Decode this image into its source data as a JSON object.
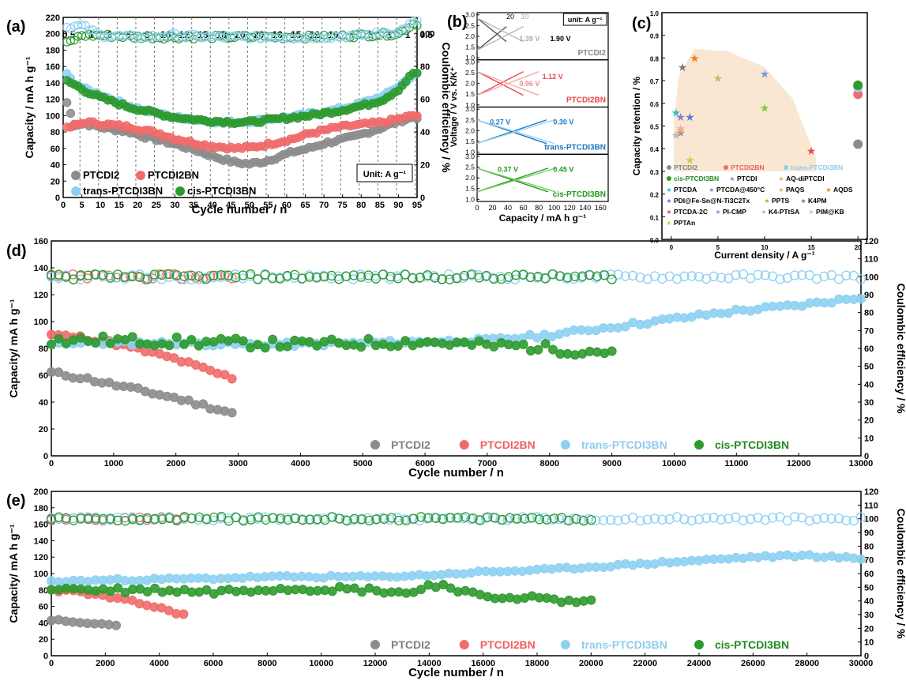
{
  "colors": {
    "PTCDI2": "#8c8c8c",
    "PTCDI2BN": "#f06b6b",
    "trans-PTCDI3BN": "#8dd0f2",
    "cis-PTCDI3BN": "#2e9a2e",
    "legend_text_PTCDI2": "#808080",
    "legend_text_PTCDI2BN": "#f06060",
    "legend_text_trans": "#8fcbed",
    "legend_text_cis": "#228b22"
  },
  "chart_data": [
    {
      "panel": "(a)",
      "type": "scatter",
      "xlabel": "Cycle number / n",
      "ylabel": "Capacity / mA h g⁻¹",
      "y2label": "Coulombic efficiency / %",
      "xlim": [
        0,
        95
      ],
      "ylim": [
        0,
        220
      ],
      "y2lim": [
        0,
        110
      ],
      "xticks": [
        0,
        5,
        10,
        15,
        20,
        25,
        30,
        35,
        40,
        45,
        50,
        55,
        60,
        65,
        70,
        75,
        80,
        85,
        90,
        95
      ],
      "yticks": [
        0,
        20,
        40,
        60,
        80,
        100,
        120,
        140,
        160,
        180,
        200,
        220
      ],
      "y2ticks": [
        0,
        20,
        40,
        60,
        80,
        100
      ],
      "rate_labels": [
        "0.5",
        "1",
        "3",
        "5",
        "8",
        "10",
        "12",
        "15",
        "18",
        "20",
        "20",
        "18",
        "15",
        "12",
        "10",
        "8",
        "5",
        "3",
        "1",
        "0.5"
      ],
      "unit_box": "Unit: A g⁻¹",
      "legend": [
        "PTCDI2",
        "PTCDI2BN",
        "trans-PTCDI3BN",
        "cis-PTCDI3BN"
      ],
      "series": [
        {
          "name": "PTCDI2",
          "x": [
            1,
            3,
            6,
            10,
            14,
            18,
            22,
            26,
            30,
            34,
            38,
            42,
            46,
            50,
            54,
            58,
            62,
            66,
            70,
            74,
            78,
            82,
            86,
            90,
            94
          ],
          "y": [
            116,
            89,
            90,
            86,
            83,
            80,
            74,
            70,
            65,
            60,
            54,
            48,
            43,
            41,
            44,
            50,
            56,
            60,
            66,
            70,
            74,
            80,
            86,
            93,
            98
          ]
        },
        {
          "name": "PTCDI2BN",
          "x": [
            1,
            3,
            6,
            10,
            14,
            18,
            22,
            26,
            30,
            34,
            38,
            42,
            46,
            50,
            54,
            58,
            62,
            66,
            70,
            74,
            78,
            82,
            86,
            90,
            94
          ],
          "y": [
            84,
            88,
            92,
            90,
            88,
            86,
            82,
            78,
            72,
            68,
            64,
            62,
            60,
            61,
            64,
            68,
            72,
            78,
            82,
            86,
            88,
            90,
            92,
            96,
            100
          ]
        },
        {
          "name": "trans-PTCDI3BN",
          "x": [
            1,
            3,
            6,
            10,
            14,
            18,
            22,
            26,
            30,
            34,
            38,
            42,
            46,
            50,
            54,
            58,
            62,
            66,
            70,
            74,
            78,
            82,
            86,
            90,
            94
          ],
          "y": [
            150,
            140,
            132,
            126,
            118,
            112,
            106,
            102,
            98,
            96,
            94,
            92,
            92,
            93,
            95,
            97,
            99,
            102,
            104,
            108,
            112,
            118,
            124,
            136,
            150
          ]
        },
        {
          "name": "cis-PTCDI3BN",
          "x": [
            1,
            3,
            6,
            10,
            14,
            18,
            22,
            26,
            30,
            34,
            38,
            42,
            46,
            50,
            54,
            58,
            62,
            66,
            70,
            74,
            78,
            82,
            86,
            90,
            94
          ],
          "y": [
            142,
            138,
            130,
            122,
            116,
            110,
            106,
            102,
            98,
            96,
            94,
            93,
            92,
            92,
            94,
            96,
            98,
            100,
            103,
            106,
            110,
            114,
            120,
            132,
            152
          ]
        },
        {
          "name": "cis-PTCDI3BN CE",
          "axis": "y2",
          "x": [
            1,
            5,
            10,
            20,
            30,
            40,
            50,
            60,
            70,
            80,
            90,
            94
          ],
          "y": [
            94,
            99,
            99,
            98,
            98,
            98,
            98,
            98,
            98,
            99,
            100,
            106
          ]
        },
        {
          "name": "trans-PTCDI3BN CE",
          "axis": "y2",
          "x": [
            1,
            5,
            10,
            20,
            30,
            40,
            50,
            60,
            70,
            80,
            90,
            94
          ],
          "y": [
            104,
            105,
            99,
            98,
            99,
            98,
            98,
            98,
            98,
            99,
            101,
            107
          ]
        }
      ]
    },
    {
      "panel": "(b)",
      "type": "line",
      "xlabel": "Capacity / mA h g⁻¹",
      "ylabel": "Voltage / V vs. K/K⁺",
      "xlim": [
        0,
        170
      ],
      "ylim": [
        1.0,
        3.0
      ],
      "xticks": [
        0,
        20,
        40,
        60,
        80,
        100,
        120,
        140,
        160
      ],
      "yticks": [
        1.0,
        1.5,
        2.0,
        2.5,
        3.0
      ],
      "unit_box": "unit: A g⁻¹",
      "subpanels": [
        {
          "name": "PTCDI2",
          "labels": [
            "20",
            "10",
            "1.39 V",
            "1.90 V"
          ],
          "cap_low": [
            38
          ],
          "cap_high": [
            60
          ]
        },
        {
          "name": "PTCDI2BN",
          "labels": [
            "0.96 V",
            "1.12 V"
          ],
          "cap_low": [
            60
          ],
          "cap_high": [
            80
          ]
        },
        {
          "name": "trans-PTCDI3BN",
          "labels": [
            "0.27 V",
            "0.30 V"
          ],
          "cap_low": [
            90
          ],
          "cap_high": [
            100
          ]
        },
        {
          "name": "cis-PTCDI3BN",
          "labels": [
            "0.37 V",
            "0.45 V"
          ],
          "cap_low": [
            92
          ],
          "cap_high": [
            102
          ]
        }
      ]
    },
    {
      "panel": "(c)",
      "type": "scatter",
      "xlabel": "Current density / A g⁻¹",
      "ylabel": "Capacity retention / %",
      "xlim": [
        -1,
        21
      ],
      "ylim": [
        0,
        1.0
      ],
      "xticks": [
        0,
        5,
        10,
        15,
        20
      ],
      "yticks": [
        0.0,
        0.1,
        0.2,
        0.3,
        0.4,
        0.5,
        0.6,
        0.7,
        0.8,
        0.9,
        1.0
      ],
      "legend": [
        "PTCDI2",
        "PTCDI2BN",
        "trans-PTCDI3BN",
        "cis-PTCDI3BN",
        "PTCDI",
        "AQ-diPTCDI",
        "PTCDA",
        "PTCDA@450°C",
        "PAQS",
        "AQDS",
        "PDI@Fe-Sn@N-Ti3C2Tx",
        "PPTS",
        "K4PM",
        "PTCDA-2C",
        "PI-CMP",
        "K4-PTtSA",
        "PIM@KB",
        "PPTAn"
      ],
      "points": [
        {
          "name": "PTCDI2",
          "x": 20,
          "y": 0.42
        },
        {
          "name": "PTCDI2BN",
          "x": 20,
          "y": 0.64
        },
        {
          "name": "trans-PTCDI3BN",
          "x": 20,
          "y": 0.67
        },
        {
          "name": "cis-PTCDI3BN",
          "x": 20,
          "y": 0.68
        },
        {
          "name": "K4PM",
          "x": 1.2,
          "y": 0.76
        },
        {
          "name": "AQDS",
          "x": 2.5,
          "y": 0.8
        },
        {
          "name": "PAQS",
          "x": 5,
          "y": 0.71
        },
        {
          "name": "PI-CMP",
          "x": 10,
          "y": 0.73
        },
        {
          "name": "PPTS",
          "x": 10,
          "y": 0.58
        },
        {
          "name": "PTCDA",
          "x": 0.5,
          "y": 0.56
        },
        {
          "name": "PTCDA@450°C",
          "x": 1,
          "y": 0.54
        },
        {
          "name": "PDI@Fe-Sn@N-Ti3C2Tx",
          "x": 2,
          "y": 0.54
        },
        {
          "name": "PTCDA-2C",
          "x": 15,
          "y": 0.39
        },
        {
          "name": "PTCDI",
          "x": 1,
          "y": 0.47
        },
        {
          "name": "AQ-diPTCDI",
          "x": 1,
          "y": 0.48
        },
        {
          "name": "K4-PTtSA",
          "x": 0.5,
          "y": 0.46
        },
        {
          "name": "PIM@KB",
          "x": 1,
          "y": 0.49
        },
        {
          "name": "PPTAn",
          "x": 2,
          "y": 0.35
        }
      ]
    },
    {
      "panel": "(d)",
      "type": "scatter",
      "xlabel": "Cycle number / n",
      "ylabel": "Capacity/ mA h g⁻¹",
      "y2label": "Coulombic efficiency / %",
      "xlim": [
        0,
        13000
      ],
      "ylim": [
        0,
        160
      ],
      "y2lim": [
        0,
        120
      ],
      "xticks": [
        0,
        1000,
        2000,
        3000,
        4000,
        5000,
        6000,
        7000,
        8000,
        9000,
        10000,
        11000,
        12000,
        13000
      ],
      "yticks": [
        0,
        20,
        40,
        60,
        80,
        100,
        120,
        140,
        160
      ],
      "y2ticks": [
        0,
        10,
        20,
        30,
        40,
        50,
        60,
        70,
        80,
        90,
        100,
        110,
        120
      ],
      "legend": [
        "PTCDI2",
        "PTCDI2BN",
        "trans-PTCDI3BN",
        "cis-PTCDI3BN"
      ],
      "series": [
        {
          "name": "PTCDI2",
          "x": [
            0,
            500,
            1000,
            1500,
            2000,
            2500,
            2900
          ],
          "y": [
            62,
            58,
            53,
            48,
            43,
            37,
            32
          ]
        },
        {
          "name": "PTCDI2BN",
          "x": [
            0,
            500,
            1000,
            1500,
            2000,
            2500,
            2900
          ],
          "y": [
            90,
            88,
            84,
            78,
            72,
            64,
            58
          ]
        },
        {
          "name": "trans-PTCDI3BN",
          "x": [
            0,
            1000,
            2000,
            3000,
            4000,
            5000,
            6000,
            7000,
            8000,
            9000,
            10000,
            11000,
            12000,
            13000
          ],
          "y": [
            84,
            84,
            84,
            83,
            83,
            84,
            85,
            86,
            90,
            96,
            102,
            108,
            112,
            118
          ]
        },
        {
          "name": "cis-PTCDI3BN",
          "x": [
            0,
            1000,
            2000,
            3000,
            4000,
            5000,
            6000,
            7000,
            7500,
            8000,
            8500,
            9000
          ],
          "y": [
            86,
            86,
            85,
            84,
            83,
            84,
            85,
            82,
            82,
            80,
            78,
            78
          ]
        },
        {
          "name": "CE",
          "axis": "y2",
          "x": [
            0,
            13000
          ],
          "y": [
            100,
            100
          ]
        }
      ]
    },
    {
      "panel": "(e)",
      "type": "scatter",
      "xlabel": "Cycle number / n",
      "ylabel": "Capacity/ mA h g⁻¹",
      "y2label": "Coulombic efficiency / %",
      "xlim": [
        0,
        30000
      ],
      "ylim": [
        0,
        200
      ],
      "y2lim": [
        0,
        120
      ],
      "xticks": [
        0,
        2000,
        4000,
        6000,
        8000,
        10000,
        12000,
        14000,
        16000,
        18000,
        20000,
        22000,
        24000,
        26000,
        28000,
        30000
      ],
      "yticks": [
        0,
        20,
        40,
        60,
        80,
        100,
        120,
        140,
        160,
        180,
        200
      ],
      "y2ticks": [
        0,
        10,
        20,
        30,
        40,
        50,
        60,
        70,
        80,
        90,
        100,
        110,
        120
      ],
      "legend": [
        "PTCDI2",
        "PTCDI2BN",
        "trans-PTCDI3BN",
        "cis-PTCDI3BN"
      ],
      "series": [
        {
          "name": "PTCDI2",
          "x": [
            0,
            500,
            1000,
            1500,
            2000,
            2400
          ],
          "y": [
            44,
            41,
            40,
            39,
            38,
            38
          ]
        },
        {
          "name": "PTCDI2BN",
          "x": [
            0,
            1000,
            2000,
            3000,
            4000,
            4900
          ],
          "y": [
            80,
            78,
            72,
            66,
            58,
            50
          ]
        },
        {
          "name": "trans-PTCDI3BN",
          "x": [
            0,
            2000,
            4000,
            6000,
            8000,
            10000,
            12000,
            14000,
            16000,
            18000,
            20000,
            22000,
            24000,
            26000,
            28000,
            30000
          ],
          "y": [
            90,
            92,
            93,
            94,
            96,
            96,
            96,
            98,
            102,
            104,
            108,
            112,
            116,
            120,
            122,
            118
          ]
        },
        {
          "name": "cis-PTCDI3BN",
          "x": [
            0,
            2000,
            4000,
            6000,
            8000,
            10000,
            12000,
            13500,
            14000,
            15000,
            16000,
            17000,
            18000,
            19000,
            20000
          ],
          "y": [
            82,
            80,
            80,
            78,
            82,
            82,
            80,
            76,
            88,
            82,
            70,
            72,
            70,
            66,
            66
          ]
        },
        {
          "name": "CE",
          "axis": "y2",
          "x": [
            0,
            30000
          ],
          "y": [
            100,
            100
          ]
        }
      ]
    }
  ]
}
